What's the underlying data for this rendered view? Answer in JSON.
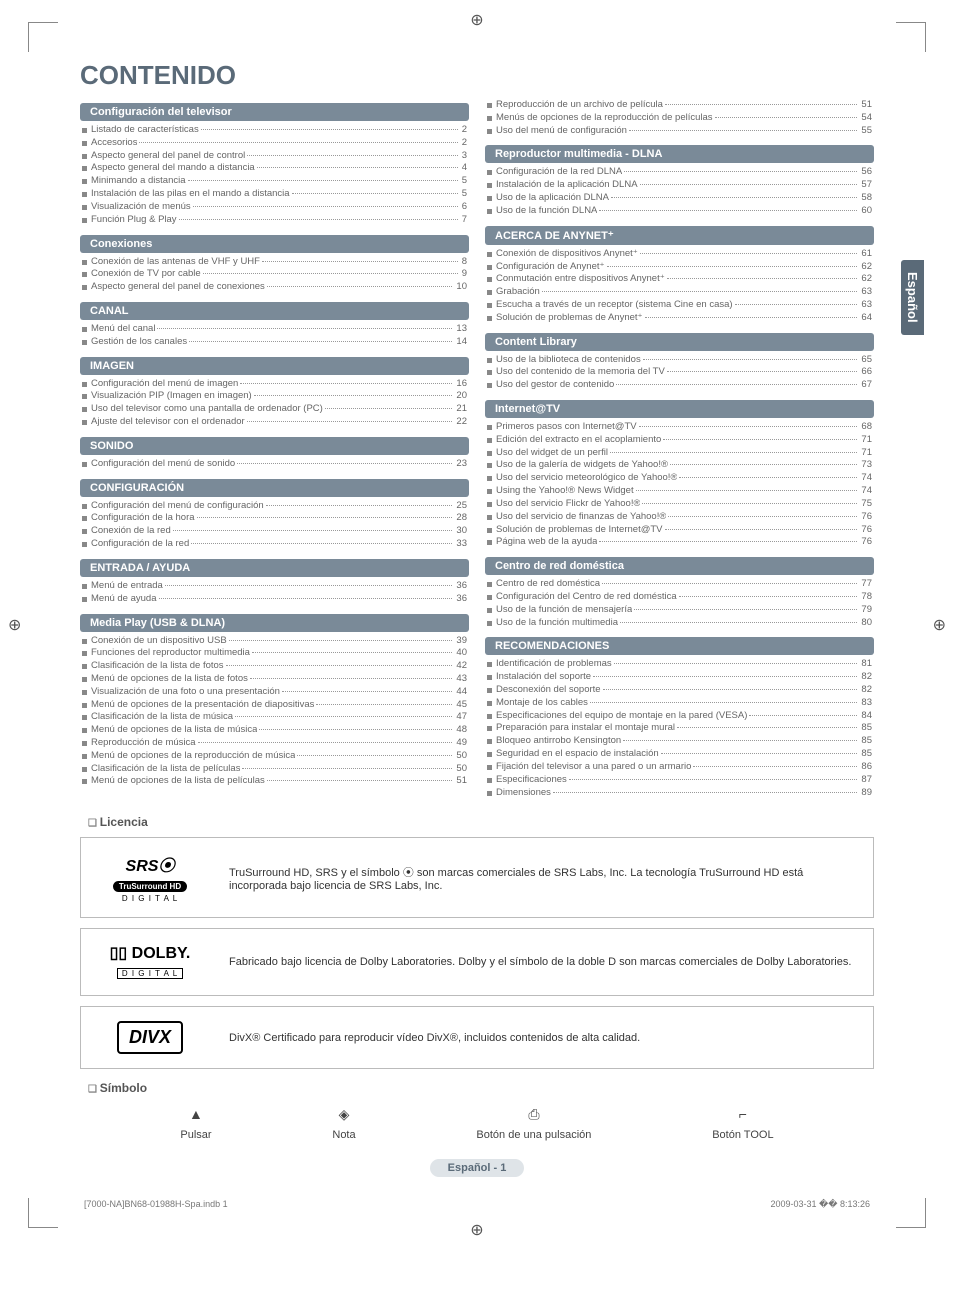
{
  "meta": {
    "side_tab": "Español",
    "footer_page": "Español - 1",
    "print_left": "[7000-NA]BN68-01988H-Spa.indb   1",
    "print_right": "2009-03-31   �� 8:13:26"
  },
  "title": "CONTENIDO",
  "columns": {
    "left": [
      {
        "header": "Configuración del televisor",
        "items": [
          {
            "label": "Listado de características",
            "page": 2
          },
          {
            "label": "Accesorios",
            "page": 2
          },
          {
            "label": "Aspecto general del panel de control",
            "page": 3
          },
          {
            "label": "Aspecto general del mando a distancia",
            "page": 4
          },
          {
            "label": "Minimando a distancia",
            "page": 5
          },
          {
            "label": "Instalación de las pilas en el mando a distancia",
            "page": 5
          },
          {
            "label": "Visualización de menús",
            "page": 6
          },
          {
            "label": "Función Plug & Play",
            "page": 7
          }
        ]
      },
      {
        "header": "Conexiones",
        "items": [
          {
            "label": "Conexión de las antenas de VHF y UHF",
            "page": 8
          },
          {
            "label": "Conexión de TV por cable",
            "page": 9
          },
          {
            "label": "Aspecto general del panel de conexiones",
            "page": 10
          }
        ]
      },
      {
        "header": "CANAL",
        "items": [
          {
            "label": "Menú del canal",
            "page": 13
          },
          {
            "label": "Gestión de los canales",
            "page": 14
          }
        ]
      },
      {
        "header": "IMAGEN",
        "items": [
          {
            "label": "Configuración del menú de imagen",
            "page": 16
          },
          {
            "label": "Visualización PIP (Imagen en imagen)",
            "page": 20
          },
          {
            "label": "Uso del televisor como una pantalla de ordenador (PC)",
            "page": 21
          },
          {
            "label": "Ajuste del televisor con el ordenador",
            "page": 22
          }
        ]
      },
      {
        "header": "SONIDO",
        "items": [
          {
            "label": "Configuración del menú de sonido",
            "page": 23
          }
        ]
      },
      {
        "header": "CONFIGURACIÓN",
        "items": [
          {
            "label": "Configuración del menú de configuración",
            "page": 25
          },
          {
            "label": "Configuración de la hora",
            "page": 28
          },
          {
            "label": "Conexión de la red",
            "page": 30
          },
          {
            "label": "Configuración de la red",
            "page": 33
          }
        ]
      },
      {
        "header": "ENTRADA / AYUDA",
        "items": [
          {
            "label": "Menú de entrada",
            "page": 36
          },
          {
            "label": "Menú de ayuda",
            "page": 36
          }
        ]
      },
      {
        "header": "Media Play (USB & DLNA)",
        "items": [
          {
            "label": "Conexión de un dispositivo USB",
            "page": 39
          },
          {
            "label": "Funciones del reproductor multimedia",
            "page": 40
          },
          {
            "label": "Clasificación de la lista de fotos",
            "page": 42
          },
          {
            "label": "Menú de opciones de la lista de fotos",
            "page": 43
          },
          {
            "label": "Visualización de una foto o una presentación",
            "page": 44
          },
          {
            "label": "Menú de opciones de la presentación de diapositivas",
            "page": 45
          },
          {
            "label": "Clasificación de la lista de música",
            "page": 47
          },
          {
            "label": "Menú de opciones de la lista de música",
            "page": 48
          },
          {
            "label": "Reproducción de música",
            "page": 49
          },
          {
            "label": "Menú de opciones de la reproducción de música",
            "page": 50
          },
          {
            "label": "Clasificación de la lista de películas",
            "page": 50
          },
          {
            "label": "Menú de opciones de la lista de películas",
            "page": 51
          }
        ]
      }
    ],
    "right": [
      {
        "header": null,
        "items": [
          {
            "label": "Reproducción de un archivo de película",
            "page": 51
          },
          {
            "label": "Menús de opciones de la reproducción de películas",
            "page": 54
          },
          {
            "label": "Uso del menú de configuración",
            "page": 55
          }
        ]
      },
      {
        "header": "Reproductor multimedia - DLNA",
        "items": [
          {
            "label": "Configuración de la red DLNA",
            "page": 56
          },
          {
            "label": "Instalación de la aplicación DLNA",
            "page": 57
          },
          {
            "label": "Uso de la aplicación DLNA",
            "page": 58
          },
          {
            "label": "Uso de la función DLNA",
            "page": 60
          }
        ]
      },
      {
        "header": "ACERCA DE ANYNET⁺",
        "items": [
          {
            "label": "Conexión de dispositivos Anynet⁺",
            "page": 61
          },
          {
            "label": "Configuración de Anynet⁺",
            "page": 62
          },
          {
            "label": "Conmutación entre dispositivos Anynet⁺",
            "page": 62
          },
          {
            "label": "Grabación",
            "page": 63
          },
          {
            "label": "Escucha a través de un receptor (sistema Cine en casa)",
            "page": 63
          },
          {
            "label": "Solución de problemas de Anynet⁺",
            "page": 64
          }
        ]
      },
      {
        "header": "Content Library",
        "items": [
          {
            "label": "Uso de la biblioteca de contenidos",
            "page": 65
          },
          {
            "label": "Uso del contenido de la memoria del TV",
            "page": 66
          },
          {
            "label": "Uso del gestor de contenido",
            "page": 67
          }
        ]
      },
      {
        "header": "Internet@TV",
        "items": [
          {
            "label": "Primeros pasos con Internet@TV",
            "page": 68
          },
          {
            "label": "Edición del extracto en el acoplamiento",
            "page": 71
          },
          {
            "label": "Uso del widget de un perfil",
            "page": 71
          },
          {
            "label": "Uso de la galería de widgets de Yahoo!®",
            "page": 73
          },
          {
            "label": "Uso del servicio meteorológico de Yahoo!®",
            "page": 74
          },
          {
            "label": "Using the Yahoo!® News Widget",
            "page": 74
          },
          {
            "label": "Uso del servicio Flickr de Yahoo!®",
            "page": 75
          },
          {
            "label": "Uso del servicio de finanzas de Yahoo!®",
            "page": 76
          },
          {
            "label": "Solución de problemas de Internet@TV",
            "page": 76
          },
          {
            "label": "Página web de la ayuda",
            "page": 76
          }
        ]
      },
      {
        "header": "Centro de red doméstica",
        "items": [
          {
            "label": "Centro de red doméstica",
            "page": 77
          },
          {
            "label": "Configuración del Centro de red doméstica",
            "page": 78
          },
          {
            "label": "Uso de la función de mensajería",
            "page": 79
          },
          {
            "label": "Uso de la función multimedia",
            "page": 80
          }
        ]
      },
      {
        "header": "RECOMENDACIONES",
        "items": [
          {
            "label": "Identificación de problemas",
            "page": 81
          },
          {
            "label": "Instalación del soporte",
            "page": 82
          },
          {
            "label": "Desconexión del soporte",
            "page": 82
          },
          {
            "label": "Montaje de los cables",
            "page": 83
          },
          {
            "label": "Especificaciones del equipo de montaje en la pared (VESA)",
            "page": 84
          },
          {
            "label": "Preparación para instalar el montaje mural",
            "page": 85
          },
          {
            "label": "Bloqueo antirrobo Kensington",
            "page": 85
          },
          {
            "label": "Seguridad en el espacio de instalación",
            "page": 85
          },
          {
            "label": "Fijación del televisor a una pared o un armario",
            "page": 86
          },
          {
            "label": "Especificaciones",
            "page": 87
          },
          {
            "label": "Dimensiones",
            "page": 89
          }
        ]
      }
    ]
  },
  "licencia": {
    "heading": "Licencia",
    "rows": [
      {
        "logo": "srs",
        "text": "TruSurround HD, SRS y el símbolo ⦿ son marcas comerciales de SRS Labs, Inc. La tecnología TruSurround HD está incorporada bajo licencia de SRS Labs, Inc."
      },
      {
        "logo": "dolby",
        "text": "Fabricado bajo licencia de Dolby Laboratories. Dolby y el símbolo de la doble D son marcas comerciales de Dolby Laboratories."
      },
      {
        "logo": "divx",
        "text": "DivX® Certificado para reproducir vídeo DivX®, incluidos contenidos de alta calidad."
      }
    ]
  },
  "simbolo": {
    "heading": "Símbolo",
    "items": [
      {
        "glyph": "▲",
        "label": "Pulsar"
      },
      {
        "glyph": "◈",
        "label": "Nota"
      },
      {
        "glyph": "⎙",
        "label": "Botón de una pulsación"
      },
      {
        "glyph": "⌐",
        "label": "Botón TOOL"
      }
    ]
  },
  "logos": {
    "srs_main": "SRS⦿",
    "srs_pill": "TruSurround HD",
    "srs_sub": "D I G I T A L",
    "dolby_main": "▯▯ DOLBY.",
    "dolby_sub": "D I G I T A L",
    "divx_main": "DIVX"
  }
}
